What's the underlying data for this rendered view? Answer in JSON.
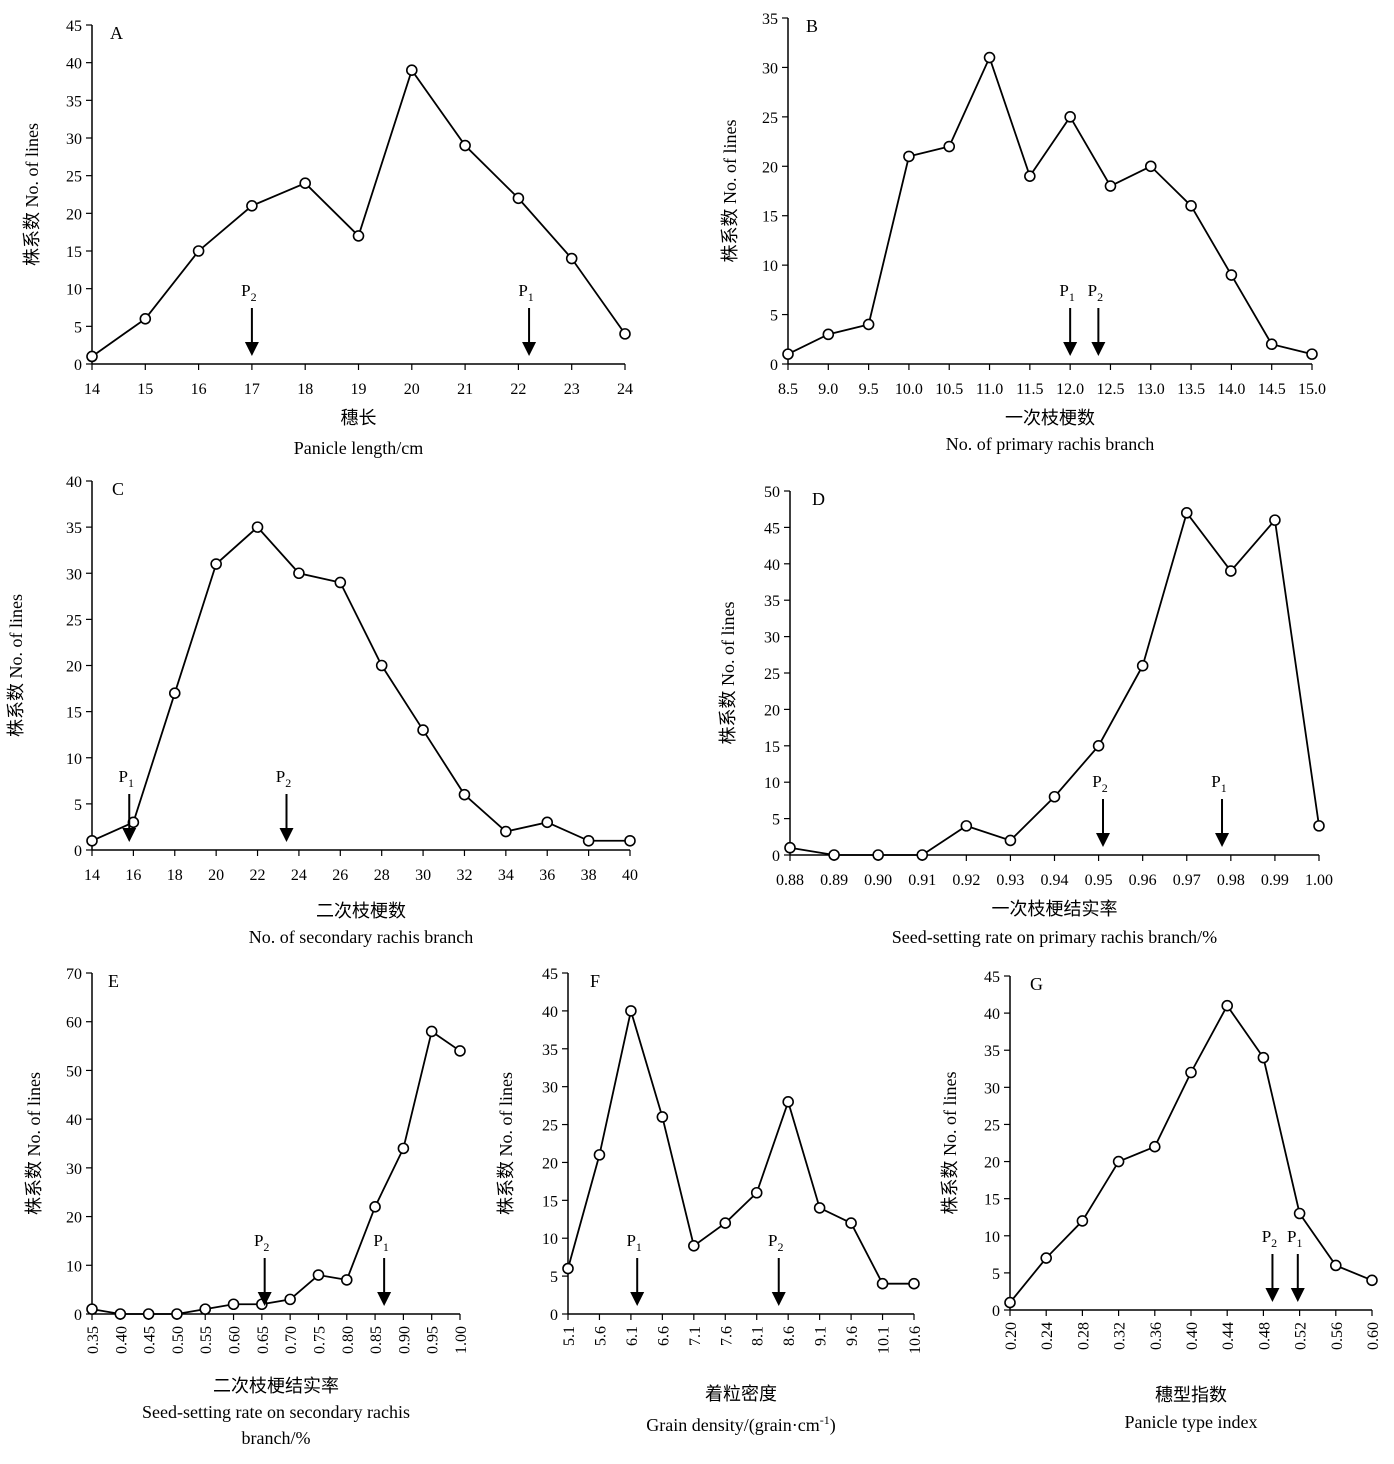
{
  "chart_data": [
    {
      "panel": "A",
      "type": "line",
      "x": [
        14,
        15,
        16,
        17,
        18,
        19,
        20,
        21,
        22,
        23,
        24
      ],
      "y": [
        1,
        6,
        15,
        21,
        24,
        17,
        39,
        29,
        22,
        14,
        4
      ],
      "xticks": [
        "14",
        "15",
        "16",
        "17",
        "18",
        "19",
        "20",
        "21",
        "22",
        "23",
        "24"
      ],
      "xlim": [
        14,
        24
      ],
      "ylim": [
        0,
        45
      ],
      "yticks": [
        0,
        5,
        10,
        15,
        20,
        25,
        30,
        35,
        40,
        45
      ],
      "ylabel": "株系数 No. of lines",
      "xlabel_cn": "穗长",
      "xlabel_en": "Panicle length/cm",
      "parents": [
        {
          "label": "P",
          "sub": "2",
          "x": 17
        },
        {
          "label": "P",
          "sub": "1",
          "x": 22.2
        }
      ]
    },
    {
      "panel": "B",
      "type": "line",
      "x": [
        8.5,
        9.0,
        9.5,
        10.0,
        10.5,
        11.0,
        11.5,
        12.0,
        12.5,
        13.0,
        13.5,
        14.0,
        14.5,
        15.0
      ],
      "y": [
        1,
        3,
        4,
        21,
        22,
        31,
        19,
        25,
        18,
        20,
        16,
        9,
        2,
        1
      ],
      "xticks": [
        "8.5",
        "9.0",
        "9.5",
        "10.0",
        "10.5",
        "11.0",
        "11.5",
        "12.0",
        "12.5",
        "13.0",
        "13.5",
        "14.0",
        "14.5",
        "15.0"
      ],
      "xlim": [
        8.5,
        15.0
      ],
      "ylim": [
        0,
        35
      ],
      "yticks": [
        0,
        5,
        10,
        15,
        20,
        25,
        30,
        35
      ],
      "ylabel": "株系数 No. of lines",
      "xlabel_cn": "一次枝梗数",
      "xlabel_en": "No. of primary rachis branch",
      "parents": [
        {
          "label": "P",
          "sub": "1",
          "x": 12.0
        },
        {
          "label": "P",
          "sub": "2",
          "x": 12.35
        }
      ]
    },
    {
      "panel": "C",
      "type": "line",
      "x": [
        14,
        16,
        18,
        20,
        22,
        24,
        26,
        28,
        30,
        32,
        34,
        36,
        38,
        40
      ],
      "y": [
        1,
        3,
        17,
        31,
        35,
        30,
        29,
        20,
        13,
        6,
        2,
        3,
        1,
        1
      ],
      "xticks": [
        "14",
        "16",
        "18",
        "20",
        "22",
        "24",
        "26",
        "28",
        "30",
        "32",
        "34",
        "36",
        "38",
        "40"
      ],
      "xlim": [
        14,
        40
      ],
      "ylim": [
        0,
        40
      ],
      "yticks": [
        0,
        5,
        10,
        15,
        20,
        25,
        30,
        35,
        40
      ],
      "ylabel": "株系数 No. of lines",
      "xlabel_cn": "二次枝梗数",
      "xlabel_en": "No. of secondary rachis branch",
      "parents": [
        {
          "label": "P",
          "sub": "1",
          "x": 15.8
        },
        {
          "label": "P",
          "sub": "2",
          "x": 23.4
        }
      ]
    },
    {
      "panel": "D",
      "type": "line",
      "x": [
        0.88,
        0.89,
        0.9,
        0.91,
        0.92,
        0.93,
        0.94,
        0.95,
        0.96,
        0.97,
        0.98,
        0.99,
        1.0
      ],
      "y": [
        1,
        0,
        0,
        0,
        4,
        2,
        8,
        15,
        26,
        47,
        39,
        46,
        4
      ],
      "xticks": [
        "0.88",
        "0.89",
        "0.90",
        "0.91",
        "0.92",
        "0.93",
        "0.94",
        "0.95",
        "0.96",
        "0.97",
        "0.98",
        "0.99",
        "1.00"
      ],
      "xlim": [
        0.88,
        1.0
      ],
      "ylim": [
        0,
        50
      ],
      "yticks": [
        0,
        5,
        10,
        15,
        20,
        25,
        30,
        35,
        40,
        45,
        50
      ],
      "ylabel": "株系数 No. of lines",
      "xlabel_cn": "一次枝梗结实率",
      "xlabel_en": "Seed-setting rate on primary rachis branch/%",
      "parents": [
        {
          "label": "P",
          "sub": "2",
          "x": 0.951
        },
        {
          "label": "P",
          "sub": "1",
          "x": 0.978
        }
      ]
    },
    {
      "panel": "E",
      "type": "line",
      "x": [
        0.35,
        0.4,
        0.45,
        0.5,
        0.55,
        0.6,
        0.65,
        0.7,
        0.75,
        0.8,
        0.85,
        0.9,
        0.95,
        1.0
      ],
      "y": [
        1,
        0,
        0,
        0,
        1,
        2,
        2,
        3,
        8,
        7,
        22,
        34,
        58,
        54
      ],
      "xticks": [
        "0.35",
        "0.40",
        "0.45",
        "0.50",
        "0.55",
        "0.60",
        "0.65",
        "0.70",
        "0.75",
        "0.80",
        "0.85",
        "0.90",
        "0.95",
        "1.00"
      ],
      "xlim": [
        0.35,
        1.0
      ],
      "ylim": [
        0,
        70
      ],
      "yticks": [
        0,
        10,
        20,
        30,
        40,
        50,
        60,
        70
      ],
      "ylabel": "株系数 No. of lines",
      "xlabel_cn": "二次枝梗结实率",
      "xlabel_en": "Seed-setting rate on secondary rachis branch/%",
      "parents": [
        {
          "label": "P",
          "sub": "2",
          "x": 0.655
        },
        {
          "label": "P",
          "sub": "1",
          "x": 0.866
        }
      ]
    },
    {
      "panel": "F",
      "type": "line",
      "x": [
        5.1,
        5.6,
        6.1,
        6.6,
        7.1,
        7.6,
        8.1,
        8.6,
        9.1,
        9.6,
        10.1,
        10.6
      ],
      "y": [
        6,
        21,
        40,
        26,
        9,
        12,
        16,
        28,
        14,
        12,
        4,
        4
      ],
      "xticks": [
        "5.1",
        "5.6",
        "6.1",
        "6.6",
        "7.1",
        "7.6",
        "8.1",
        "8.6",
        "9.1",
        "9.6",
        "10.1",
        "10.6"
      ],
      "xlim": [
        5.1,
        10.6
      ],
      "ylim": [
        0,
        45
      ],
      "yticks": [
        0,
        5,
        10,
        15,
        20,
        25,
        30,
        35,
        40,
        45
      ],
      "ylabel": "株系数 No. of lines",
      "xlabel_cn": "着粒密度",
      "xlabel_en": "Grain density/(grain·cm",
      "xlabel_en_sup": "-1",
      "xlabel_en_tail": ")",
      "parents": [
        {
          "label": "P",
          "sub": "1",
          "x": 6.2
        },
        {
          "label": "P",
          "sub": "2",
          "x": 8.45
        }
      ]
    },
    {
      "panel": "G",
      "type": "line",
      "x": [
        0.2,
        0.24,
        0.28,
        0.32,
        0.36,
        0.4,
        0.44,
        0.48,
        0.52,
        0.56,
        0.6
      ],
      "y": [
        1,
        7,
        12,
        20,
        22,
        32,
        41,
        34,
        13,
        6,
        4
      ],
      "xticks": [
        "0.20",
        "0.24",
        "0.28",
        "0.32",
        "0.36",
        "0.40",
        "0.44",
        "0.48",
        "0.52",
        "0.56",
        "0.60"
      ],
      "xlim": [
        0.2,
        0.6
      ],
      "ylim": [
        0,
        45
      ],
      "yticks": [
        0,
        5,
        10,
        15,
        20,
        25,
        30,
        35,
        40,
        45
      ],
      "ylabel": "株系数 No. of lines",
      "xlabel_cn": "穗型指数",
      "xlabel_en": "Panicle type index",
      "parents": [
        {
          "label": "P",
          "sub": "2",
          "x": 0.49
        },
        {
          "label": "P",
          "sub": "1",
          "x": 0.518
        }
      ]
    }
  ]
}
